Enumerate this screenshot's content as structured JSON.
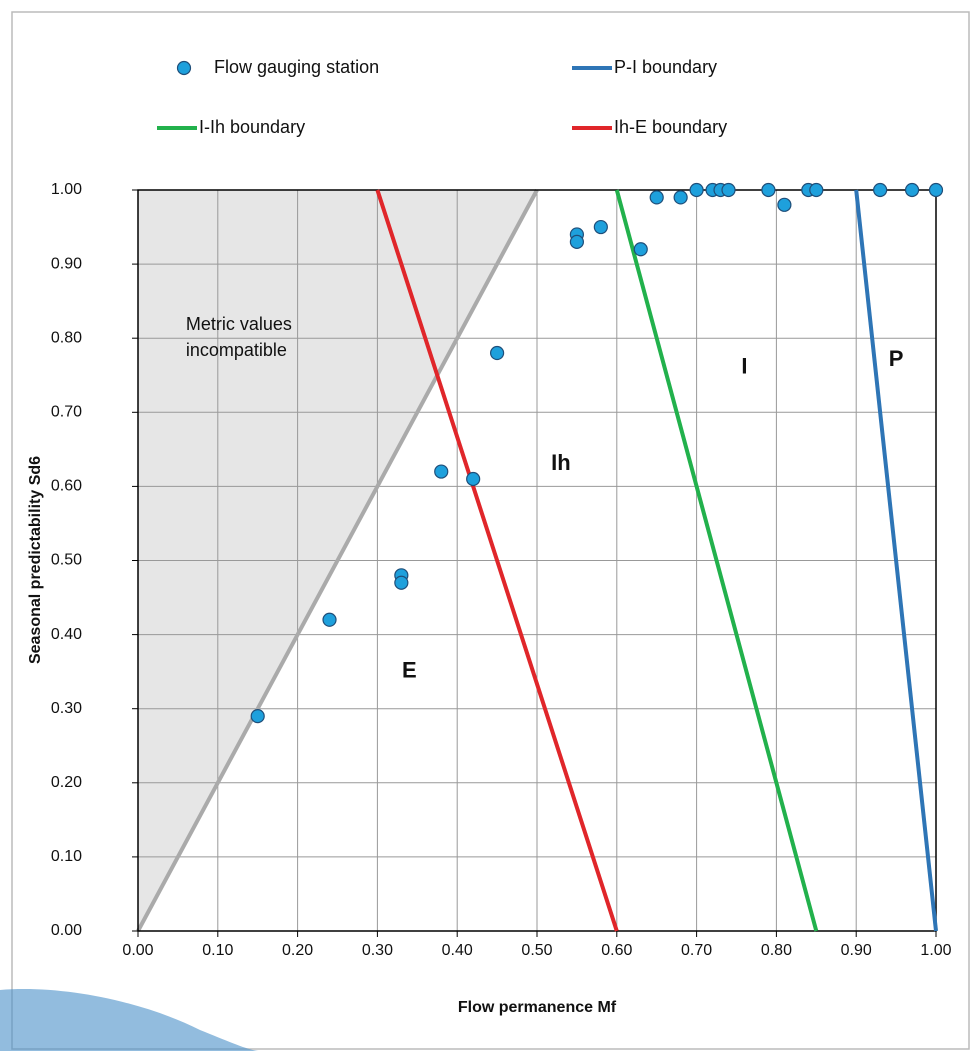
{
  "chart_data": {
    "type": "scatter",
    "x_label": "Flow permanence Mf",
    "y_label": "Seasonal predictability Sd6",
    "xlim": [
      0,
      1
    ],
    "ylim": [
      0,
      1
    ],
    "xticks": [
      {
        "value": 0,
        "label": "0.00"
      },
      {
        "value": 0.1,
        "label": "0.10"
      },
      {
        "value": 0.2,
        "label": "0.20"
      },
      {
        "value": 0.3,
        "label": "0.30"
      },
      {
        "value": 0.4,
        "label": "0.40"
      },
      {
        "value": 0.5,
        "label": "0.50"
      },
      {
        "value": 0.6,
        "label": "0.60"
      },
      {
        "value": 0.7,
        "label": "0.70"
      },
      {
        "value": 0.8,
        "label": "0.80"
      },
      {
        "value": 0.9,
        "label": "0.90"
      },
      {
        "value": 1,
        "label": "1.00"
      }
    ],
    "yticks": [
      {
        "value": 0,
        "label": "0.00"
      },
      {
        "value": 0.1,
        "label": "0.10"
      },
      {
        "value": 0.2,
        "label": "0.20"
      },
      {
        "value": 0.3,
        "label": "0.30"
      },
      {
        "value": 0.4,
        "label": "0.40"
      },
      {
        "value": 0.5,
        "label": "0.50"
      },
      {
        "value": 0.6,
        "label": "0.60"
      },
      {
        "value": 0.7,
        "label": "0.70"
      },
      {
        "value": 0.8,
        "label": "0.80"
      },
      {
        "value": 0.9,
        "label": "0.90"
      },
      {
        "value": 1,
        "label": "1.00"
      }
    ],
    "grid": true,
    "region": {
      "x": [
        0,
        0,
        0.5
      ],
      "y": [
        0,
        1,
        1
      ],
      "label": [
        "Metric values",
        "incompatible"
      ],
      "label_at": [
        0.06,
        0.8
      ]
    },
    "series": [
      {
        "name": "Flow gauging station",
        "type": "scatter",
        "color": "#1ea0dc",
        "x": [
          0.15,
          0.24,
          0.33,
          0.33,
          0.38,
          0.42,
          0.45,
          0.55,
          0.55,
          0.58,
          0.63,
          0.65,
          0.68,
          0.7,
          0.72,
          0.73,
          0.74,
          0.79,
          0.81,
          0.84,
          0.85,
          0.93,
          0.97,
          1.0
        ],
        "y": [
          0.29,
          0.42,
          0.48,
          0.47,
          0.62,
          0.61,
          0.78,
          0.94,
          0.93,
          0.95,
          0.92,
          0.99,
          0.99,
          1.0,
          1.0,
          1.0,
          1.0,
          1.0,
          0.98,
          1.0,
          1.0,
          1.0,
          1.0,
          1.0
        ]
      },
      {
        "name": "P-I boundary",
        "type": "line",
        "color": "#2e75b6",
        "x": [
          0.9,
          1.0
        ],
        "y": [
          1,
          0
        ]
      },
      {
        "name": "I-Ih boundary",
        "type": "line",
        "color": "#22b14c",
        "x": [
          0.6,
          0.85
        ],
        "y": [
          1,
          0
        ]
      },
      {
        "name": "Ih-E boundary",
        "type": "line",
        "color": "#e0262a",
        "x": [
          0.3,
          0.6
        ],
        "y": [
          1,
          0
        ]
      }
    ],
    "annotations": [
      {
        "text": "E",
        "x": 0.34,
        "y": 0.35
      },
      {
        "text": "Ih",
        "x": 0.53,
        "y": 0.63
      },
      {
        "text": "I",
        "x": 0.76,
        "y": 0.76
      },
      {
        "text": "P",
        "x": 0.95,
        "y": 0.77
      }
    ]
  }
}
